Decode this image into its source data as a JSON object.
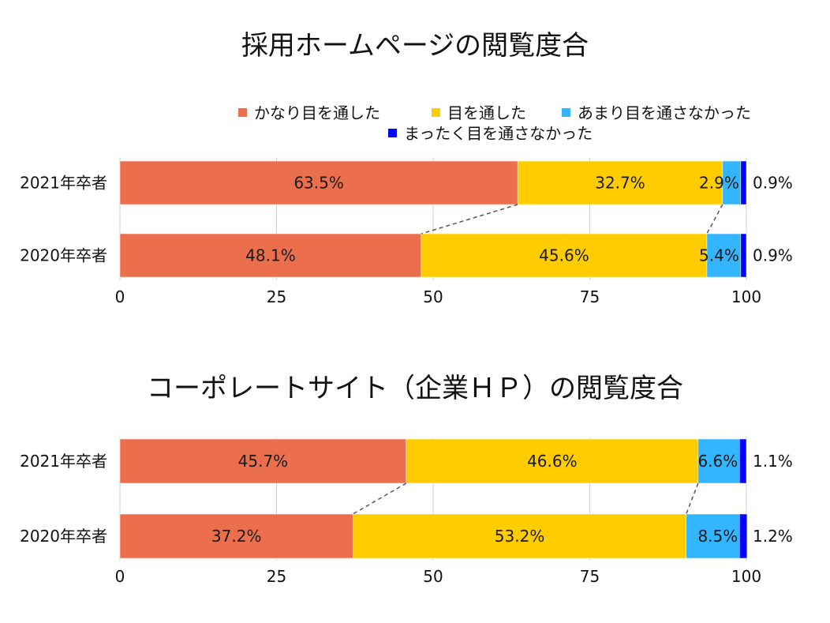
{
  "chart_data": [
    {
      "type": "bar",
      "orientation": "horizontal",
      "stacked": true,
      "title": "採用ホームページの閲覧度合",
      "categories": [
        "2021年卒者",
        "2020年卒者"
      ],
      "series": [
        {
          "name": "かなり目を通した",
          "color": "#EC6F4D",
          "values": [
            63.5,
            48.1
          ],
          "labels": [
            "63.5%",
            "48.1%"
          ]
        },
        {
          "name": "目を通した",
          "color": "#FFCC00",
          "values": [
            32.7,
            45.6
          ],
          "labels": [
            "32.7%",
            "45.6%"
          ]
        },
        {
          "name": "あまり目を通さなかった",
          "color": "#33B5FF",
          "values": [
            2.9,
            5.4
          ],
          "labels": [
            "2.9%",
            "5.4%"
          ]
        },
        {
          "name": "まったく目を通さなかった",
          "color": "#0000FF",
          "values": [
            0.9,
            0.9
          ],
          "labels": [
            "0.9%",
            "0.9%"
          ]
        }
      ],
      "xlim": [
        0,
        100
      ],
      "xticks": [
        "0",
        "25",
        "50",
        "75",
        "100"
      ],
      "legend": "top"
    },
    {
      "type": "bar",
      "orientation": "horizontal",
      "stacked": true,
      "title": "コーポレートサイト（企業ＨＰ）の閲覧度合",
      "categories": [
        "2021年卒者",
        "2020年卒者"
      ],
      "series": [
        {
          "name": "かなり目を通した",
          "color": "#EC6F4D",
          "values": [
            45.7,
            37.2
          ],
          "labels": [
            "45.7%",
            "37.2%"
          ]
        },
        {
          "name": "目を通した",
          "color": "#FFCC00",
          "values": [
            46.6,
            53.2
          ],
          "labels": [
            "46.6%",
            "53.2%"
          ]
        },
        {
          "name": "あまり目を通さなかった",
          "color": "#33B5FF",
          "values": [
            6.6,
            8.5
          ],
          "labels": [
            "6.6%",
            "8.5%"
          ]
        },
        {
          "name": "まったく目を通さなかった",
          "color": "#0000FF",
          "values": [
            1.1,
            1.2
          ],
          "labels": [
            "1.1%",
            "1.2%"
          ]
        }
      ],
      "xlim": [
        0,
        100
      ],
      "xticks": [
        "0",
        "25",
        "50",
        "75",
        "100"
      ],
      "legend": "none"
    }
  ]
}
